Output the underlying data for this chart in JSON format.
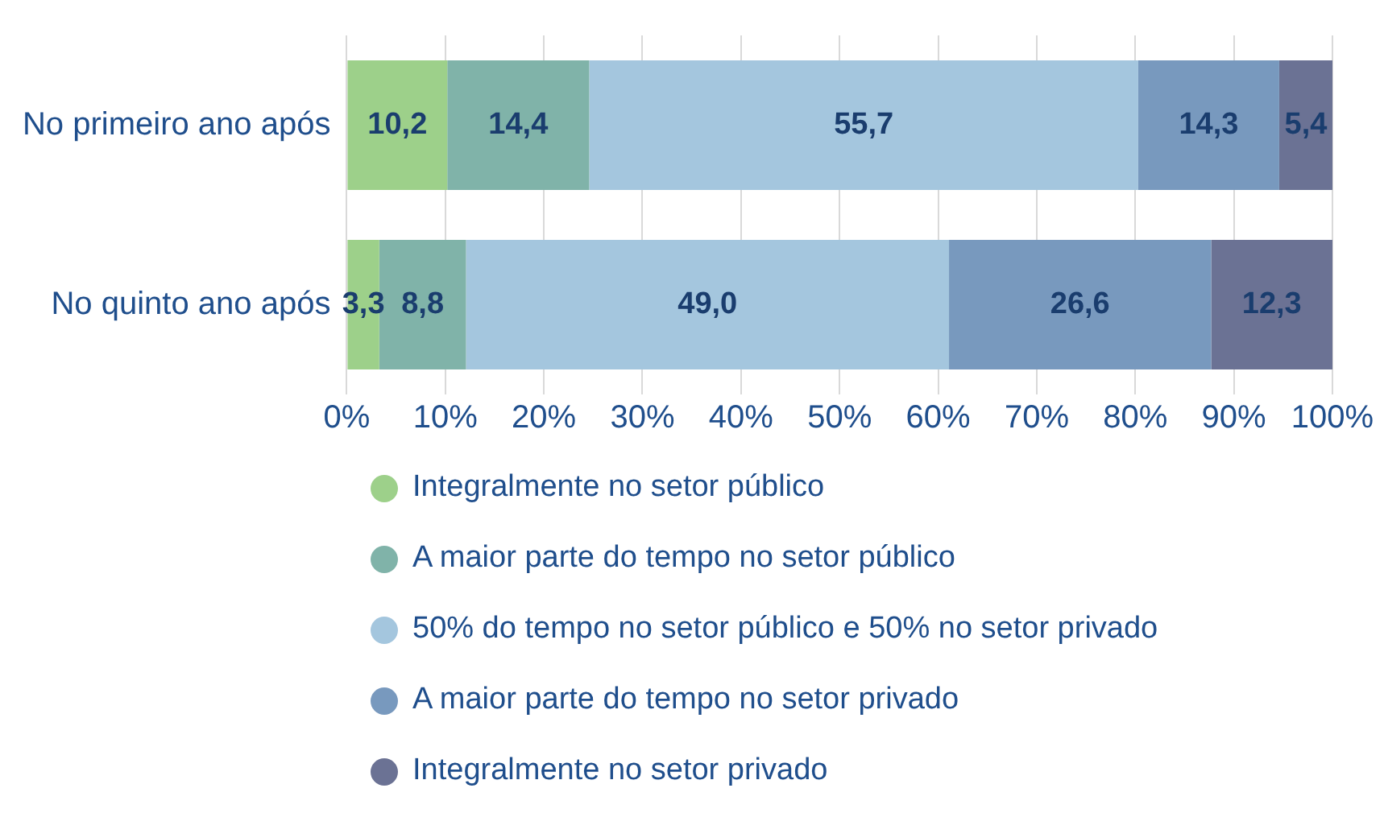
{
  "chart_data": {
    "type": "bar",
    "orientation": "horizontal",
    "stacked": true,
    "categories": [
      "No primeiro ano após",
      "No quinto ano após"
    ],
    "series": [
      {
        "name": "Integralmente no setor público",
        "color": "#9dd08a",
        "values": [
          10.2,
          3.3
        ],
        "value_labels": [
          "10,2",
          "3,3"
        ]
      },
      {
        "name": "A maior parte do tempo no setor público",
        "color": "#80b3a9",
        "values": [
          14.4,
          8.8
        ],
        "value_labels": [
          "14,4",
          "8,8"
        ]
      },
      {
        "name": "50% do tempo no setor público e 50% no setor privado",
        "color": "#a4c6de",
        "values": [
          55.7,
          49.0
        ],
        "value_labels": [
          "55,7",
          "49,0"
        ]
      },
      {
        "name": "A maior parte do tempo no setor privado",
        "color": "#7899be",
        "values": [
          14.3,
          26.6
        ],
        "value_labels": [
          "14,3",
          "26,6"
        ]
      },
      {
        "name": "Integralmente no setor privado",
        "color": "#6b7294",
        "values": [
          5.4,
          12.3
        ],
        "value_labels": [
          "5,4",
          "12,3"
        ]
      }
    ],
    "xlim": [
      0,
      100
    ],
    "xticks": [
      {
        "value": 0,
        "label": "0%"
      },
      {
        "value": 10,
        "label": "10%"
      },
      {
        "value": 20,
        "label": "20%"
      },
      {
        "value": 30,
        "label": "30%"
      },
      {
        "value": 40,
        "label": "40%"
      },
      {
        "value": 50,
        "label": "50%"
      },
      {
        "value": 60,
        "label": "60%"
      },
      {
        "value": 70,
        "label": "70%"
      },
      {
        "value": 80,
        "label": "80%"
      },
      {
        "value": 90,
        "label": "90%"
      },
      {
        "value": 100,
        "label": "100%"
      }
    ],
    "grid": "x",
    "legend": "bottom left"
  }
}
